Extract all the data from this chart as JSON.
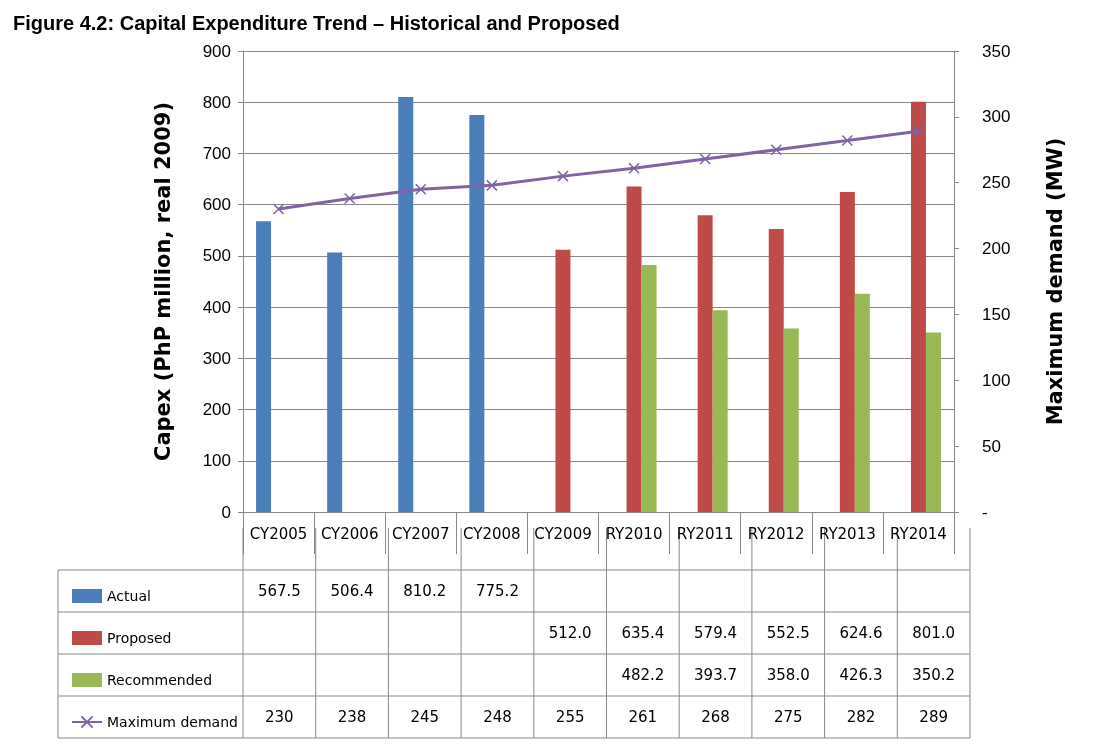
{
  "chart_data": {
    "type": "bar",
    "title": "Figure 4.2: Capital Expenditure Trend – Historical and Proposed",
    "ylabel": "Capex (PhP million, real 2009)",
    "y2label": "Maximum demand (MW)",
    "categories": [
      "CY2005",
      "CY2006",
      "CY2007",
      "CY2008",
      "CY2009",
      "RY2010",
      "RY2011",
      "RY2012",
      "RY2013",
      "RY2014"
    ],
    "series": [
      {
        "name": "Actual",
        "color": "#4a7ebb",
        "values": [
          567.5,
          506.4,
          810.2,
          775.2,
          null,
          null,
          null,
          null,
          null,
          null
        ],
        "value_labels": [
          "567.5",
          "506.4",
          "810.2",
          "775.2",
          null,
          null,
          null,
          null,
          null,
          null
        ]
      },
      {
        "name": "Proposed",
        "color": "#be4b48",
        "values": [
          null,
          null,
          null,
          null,
          512.0,
          635.4,
          579.4,
          552.5,
          624.6,
          801.0
        ],
        "value_labels": [
          null,
          null,
          null,
          null,
          "512.0",
          "635.4",
          "579.4",
          "552.5",
          "624.6",
          "801.0"
        ]
      },
      {
        "name": "Recommended",
        "color": "#98b954",
        "values": [
          null,
          null,
          null,
          null,
          null,
          482.2,
          393.7,
          358.0,
          426.3,
          350.2
        ],
        "value_labels": [
          null,
          null,
          null,
          null,
          null,
          "482.2",
          "393.7",
          "358.0",
          "426.3",
          "350.2"
        ]
      },
      {
        "name": "Maximum demand",
        "type": "line",
        "axis": "y2",
        "color": "#8064a2",
        "marker": "cross",
        "values": [
          230,
          238,
          245,
          248,
          255,
          261,
          268,
          275,
          282,
          289
        ],
        "value_labels": [
          "230",
          "238",
          "245",
          "248",
          "255",
          "261",
          "268",
          "275",
          "282",
          "289"
        ]
      }
    ],
    "ylim": [
      0,
      900
    ],
    "yticks": [
      0,
      100,
      200,
      300,
      400,
      500,
      600,
      700,
      800,
      900
    ],
    "y2lim": [
      0,
      350
    ],
    "y2ticks": [
      {
        "value": 0,
        "label": "-"
      },
      50,
      100,
      150,
      200,
      250,
      300,
      350
    ],
    "grid": "y",
    "legend": "bottom left"
  }
}
